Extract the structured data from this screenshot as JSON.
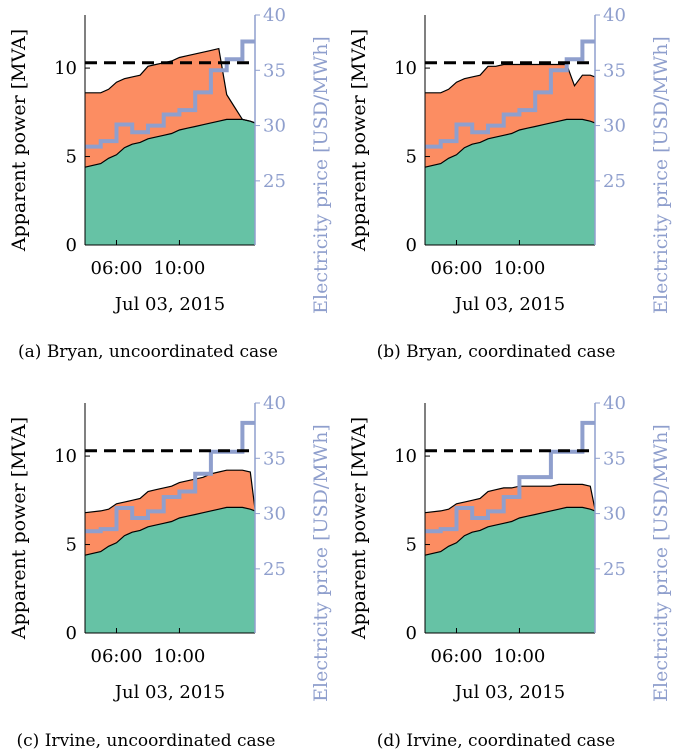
{
  "colors": {
    "base_fill": "#66c2a5",
    "ev_fill": "#fc8d62",
    "price_line": "#8f9fcd",
    "limit_line": "#000000"
  },
  "chart_data": [
    {
      "type": "area",
      "caption": "(a) Bryan, uncoordinated case",
      "xlabel": "Jul 03, 2015",
      "ylabel": "Apparent power [MVA]",
      "ylabel2": "Electricity price [USD/MWh]",
      "x_ticks": [
        "06:00",
        "10:00"
      ],
      "y_ticks": [
        0,
        5,
        10
      ],
      "y2_ticks": [
        25,
        30,
        35,
        40
      ],
      "ylim": [
        0,
        13
      ],
      "y2lim": [
        19.2,
        40
      ],
      "xlim": [
        4.0,
        14.8
      ],
      "limit": 10.3,
      "x": [
        4.0,
        5.0,
        5.5,
        6.0,
        6.5,
        7.0,
        7.5,
        8.0,
        8.5,
        9.0,
        9.5,
        10.0,
        10.5,
        11.0,
        11.5,
        12.0,
        12.5,
        13.0,
        13.5,
        14.0,
        14.5,
        14.8
      ],
      "series": [
        {
          "values": [
            4.4,
            4.6,
            4.9,
            5.1,
            5.5,
            5.7,
            5.8,
            6.0,
            6.1,
            6.2,
            6.3,
            6.5,
            6.6,
            6.7,
            6.8,
            6.9,
            7.0,
            7.1,
            7.1,
            7.1,
            7.0,
            6.9
          ]
        },
        {
          "values": [
            8.6,
            8.6,
            8.8,
            9.2,
            9.4,
            9.5,
            9.6,
            10.1,
            10.2,
            10.3,
            10.4,
            10.6,
            10.7,
            10.8,
            10.9,
            11.0,
            11.1,
            8.5,
            7.8,
            7.1,
            7.0,
            6.9
          ]
        }
      ],
      "price": {
        "x": [
          4.0,
          5.0,
          5.0,
          6.0,
          6.0,
          7.0,
          7.0,
          8.0,
          8.0,
          9.0,
          9.0,
          10.0,
          10.0,
          11.0,
          11.0,
          12.0,
          12.0,
          13.0,
          13.0,
          14.0,
          14.0,
          14.8
        ],
        "values": [
          28.1,
          28.1,
          28.6,
          28.6,
          30.1,
          30.1,
          29.4,
          29.4,
          30.0,
          30.0,
          31.0,
          31.0,
          31.4,
          31.4,
          33.0,
          33.0,
          35.0,
          35.0,
          36.0,
          36.0,
          37.6,
          37.6
        ]
      }
    },
    {
      "type": "area",
      "caption": "(b) Bryan, coordinated case",
      "xlabel": "Jul 03, 2015",
      "ylabel": "Apparent power [MVA]",
      "ylabel2": "Electricity price [USD/MWh]",
      "x_ticks": [
        "06:00",
        "10:00"
      ],
      "y_ticks": [
        0,
        5,
        10
      ],
      "y2_ticks": [
        25,
        30,
        35,
        40
      ],
      "ylim": [
        0,
        13
      ],
      "y2lim": [
        19.2,
        40
      ],
      "xlim": [
        4.0,
        14.8
      ],
      "limit": 10.3,
      "x": [
        4.0,
        5.0,
        5.5,
        6.0,
        6.5,
        7.0,
        7.5,
        8.0,
        8.5,
        9.0,
        9.5,
        10.0,
        10.5,
        11.0,
        11.5,
        12.0,
        12.5,
        13.0,
        13.5,
        14.0,
        14.5,
        14.8
      ],
      "series": [
        {
          "values": [
            4.4,
            4.6,
            4.9,
            5.1,
            5.5,
            5.7,
            5.8,
            6.0,
            6.1,
            6.2,
            6.3,
            6.5,
            6.6,
            6.7,
            6.8,
            6.9,
            7.0,
            7.1,
            7.1,
            7.1,
            7.0,
            6.9
          ]
        },
        {
          "values": [
            8.6,
            8.6,
            8.8,
            9.2,
            9.4,
            9.5,
            9.6,
            10.1,
            10.1,
            10.2,
            10.2,
            10.2,
            10.2,
            10.2,
            10.2,
            10.2,
            10.2,
            10.2,
            9.0,
            9.6,
            9.6,
            9.5
          ]
        }
      ],
      "price": {
        "x": [
          4.0,
          5.0,
          5.0,
          6.0,
          6.0,
          7.0,
          7.0,
          8.0,
          8.0,
          9.0,
          9.0,
          10.0,
          10.0,
          11.0,
          11.0,
          12.0,
          12.0,
          13.0,
          13.0,
          14.0,
          14.0,
          14.8
        ],
        "values": [
          28.1,
          28.1,
          28.6,
          28.6,
          30.1,
          30.1,
          29.4,
          29.4,
          30.0,
          30.0,
          31.0,
          31.0,
          31.4,
          31.4,
          33.0,
          33.0,
          35.0,
          35.0,
          36.0,
          36.0,
          37.6,
          37.6
        ]
      }
    },
    {
      "type": "area",
      "caption": "(c) Irvine, uncoordinated case",
      "xlabel": "Jul 03, 2015",
      "ylabel": "Apparent power [MVA]",
      "ylabel2": "Electricity price [USD/MWh]",
      "x_ticks": [
        "06:00",
        "10:00"
      ],
      "y_ticks": [
        0,
        5,
        10
      ],
      "y2_ticks": [
        25,
        30,
        35,
        40
      ],
      "ylim": [
        0,
        13
      ],
      "y2lim": [
        19.2,
        40
      ],
      "xlim": [
        4.0,
        14.8
      ],
      "limit": 10.3,
      "x": [
        4.0,
        5.0,
        5.5,
        6.0,
        6.5,
        7.0,
        7.5,
        8.0,
        8.5,
        9.0,
        9.5,
        10.0,
        10.5,
        11.0,
        11.5,
        12.0,
        12.5,
        13.0,
        13.5,
        14.0,
        14.5,
        14.8
      ],
      "series": [
        {
          "values": [
            4.4,
            4.6,
            4.9,
            5.1,
            5.5,
            5.7,
            5.8,
            6.0,
            6.1,
            6.2,
            6.3,
            6.5,
            6.6,
            6.7,
            6.8,
            6.9,
            7.0,
            7.1,
            7.1,
            7.1,
            7.0,
            6.9
          ]
        },
        {
          "values": [
            6.8,
            6.9,
            7.0,
            7.3,
            7.4,
            7.5,
            7.6,
            8.0,
            8.1,
            8.2,
            8.3,
            8.5,
            8.6,
            8.7,
            8.8,
            9.0,
            9.1,
            9.2,
            9.2,
            9.2,
            9.1,
            7.0
          ]
        }
      ],
      "price": {
        "x": [
          4.0,
          5.0,
          5.0,
          6.0,
          6.0,
          7.0,
          7.0,
          8.0,
          8.0,
          9.0,
          9.0,
          10.0,
          10.0,
          11.0,
          11.0,
          12.0,
          12.0,
          13.0,
          13.0,
          14.0,
          14.0,
          14.8
        ],
        "values": [
          28.4,
          28.4,
          28.6,
          28.6,
          30.5,
          30.5,
          29.6,
          29.6,
          30.2,
          30.2,
          31.5,
          31.5,
          32.0,
          32.0,
          33.6,
          33.6,
          35.6,
          35.6,
          35.6,
          35.6,
          38.2,
          38.2
        ]
      }
    },
    {
      "type": "area",
      "caption": "(d) Irvine, coordinated case",
      "xlabel": "Jul 03, 2015",
      "ylabel": "Apparent power [MVA]",
      "ylabel2": "Electricity price [USD/MWh]",
      "x_ticks": [
        "06:00",
        "10:00"
      ],
      "y_ticks": [
        0,
        5,
        10
      ],
      "y2_ticks": [
        25,
        30,
        35,
        40
      ],
      "ylim": [
        0,
        13
      ],
      "y2lim": [
        19.2,
        40
      ],
      "xlim": [
        4.0,
        14.8
      ],
      "limit": 10.3,
      "x": [
        4.0,
        5.0,
        5.5,
        6.0,
        6.5,
        7.0,
        7.5,
        8.0,
        8.5,
        9.0,
        9.5,
        10.0,
        10.5,
        11.0,
        11.5,
        12.0,
        12.5,
        13.0,
        13.5,
        14.0,
        14.5,
        14.8
      ],
      "series": [
        {
          "values": [
            4.4,
            4.6,
            4.9,
            5.1,
            5.5,
            5.7,
            5.8,
            6.0,
            6.1,
            6.2,
            6.3,
            6.5,
            6.6,
            6.7,
            6.8,
            6.9,
            7.0,
            7.1,
            7.1,
            7.1,
            7.0,
            6.9
          ]
        },
        {
          "values": [
            6.8,
            6.9,
            7.0,
            7.3,
            7.4,
            7.5,
            7.6,
            8.0,
            8.1,
            8.2,
            8.2,
            8.3,
            8.3,
            8.3,
            8.3,
            8.3,
            8.4,
            8.4,
            8.4,
            8.4,
            8.3,
            7.0
          ]
        }
      ],
      "price": {
        "x": [
          4.0,
          5.0,
          5.0,
          6.0,
          6.0,
          7.0,
          7.0,
          8.0,
          8.0,
          9.0,
          9.0,
          10.0,
          10.0,
          11.0,
          11.0,
          12.0,
          12.0,
          13.0,
          13.0,
          14.0,
          14.0,
          14.8
        ],
        "values": [
          28.4,
          28.4,
          28.6,
          28.6,
          30.5,
          30.5,
          29.6,
          29.6,
          30.2,
          30.2,
          31.5,
          31.5,
          33.3,
          33.3,
          33.3,
          33.3,
          35.6,
          35.6,
          35.6,
          35.6,
          38.2,
          38.2
        ]
      }
    }
  ]
}
